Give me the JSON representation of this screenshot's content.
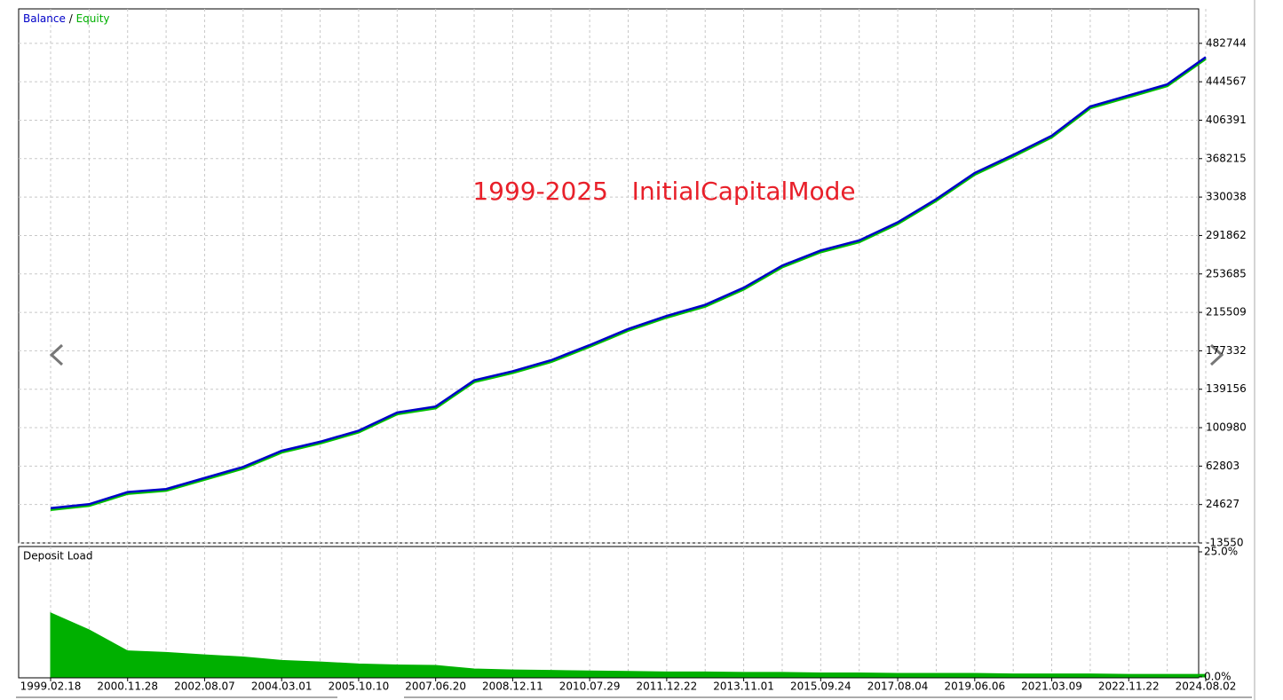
{
  "chart_data": [
    {
      "type": "line",
      "annotation": "1999-2025   InitialCapitalMode",
      "legend_separator": "/",
      "categories": [
        "1999.02.18",
        null,
        "2000.11.28",
        null,
        "2002.08.07",
        null,
        "2004.03.01",
        null,
        "2005.10.10",
        null,
        "2007.06.20",
        null,
        "2008.12.11",
        null,
        "2010.07.29",
        null,
        "2011.12.22",
        null,
        "2013.11.01",
        null,
        "2015.09.24",
        null,
        "2017.08.04",
        null,
        "2019.06.06",
        null,
        "2021.03.09",
        null,
        "2022.11.22",
        null,
        "2024.08.02"
      ],
      "series": [
        {
          "name": "Balance",
          "color": "#0000c8",
          "values": [
            21000,
            25000,
            37000,
            40000,
            51000,
            62000,
            78000,
            87000,
            98000,
            116000,
            122000,
            148000,
            157000,
            168000,
            183000,
            199000,
            212000,
            223000,
            240000,
            262000,
            277000,
            287000,
            305000,
            328000,
            354000,
            372000,
            391000,
            420000,
            431000,
            442000,
            469000
          ]
        },
        {
          "name": "Equity",
          "color": "#00c000",
          "values": [
            19500,
            23500,
            35500,
            38500,
            49500,
            60500,
            76500,
            85500,
            96500,
            114500,
            120500,
            146500,
            155500,
            166500,
            181500,
            197500,
            210500,
            221500,
            238500,
            260500,
            275500,
            285500,
            303500,
            326500,
            352500,
            370500,
            389500,
            418500,
            429500,
            440500,
            467500
          ]
        }
      ],
      "ylim": [
        -13550,
        516972
      ],
      "yticks": [
        -13550,
        24627,
        62803,
        100980,
        139156,
        177332,
        215509,
        253685,
        291862,
        330038,
        368215,
        406391,
        444567,
        482744
      ],
      "grid": true
    },
    {
      "type": "area",
      "title": "Deposit Load",
      "color": "#00b000",
      "values": [
        12.8,
        9.4,
        5.2,
        4.9,
        4.4,
        4.0,
        3.3,
        3.0,
        2.6,
        2.4,
        2.3,
        1.6,
        1.4,
        1.3,
        1.2,
        1.1,
        1.0,
        1.0,
        0.9,
        0.9,
        0.8,
        0.8,
        0.7,
        0.7,
        0.7,
        0.6,
        0.6,
        0.6,
        0.5,
        0.5,
        0.5
      ],
      "ylim": [
        0,
        25
      ],
      "yticks": [
        {
          "value": 0,
          "label": "0.0%"
        },
        {
          "value": 25,
          "label": "25.0%"
        }
      ]
    }
  ]
}
